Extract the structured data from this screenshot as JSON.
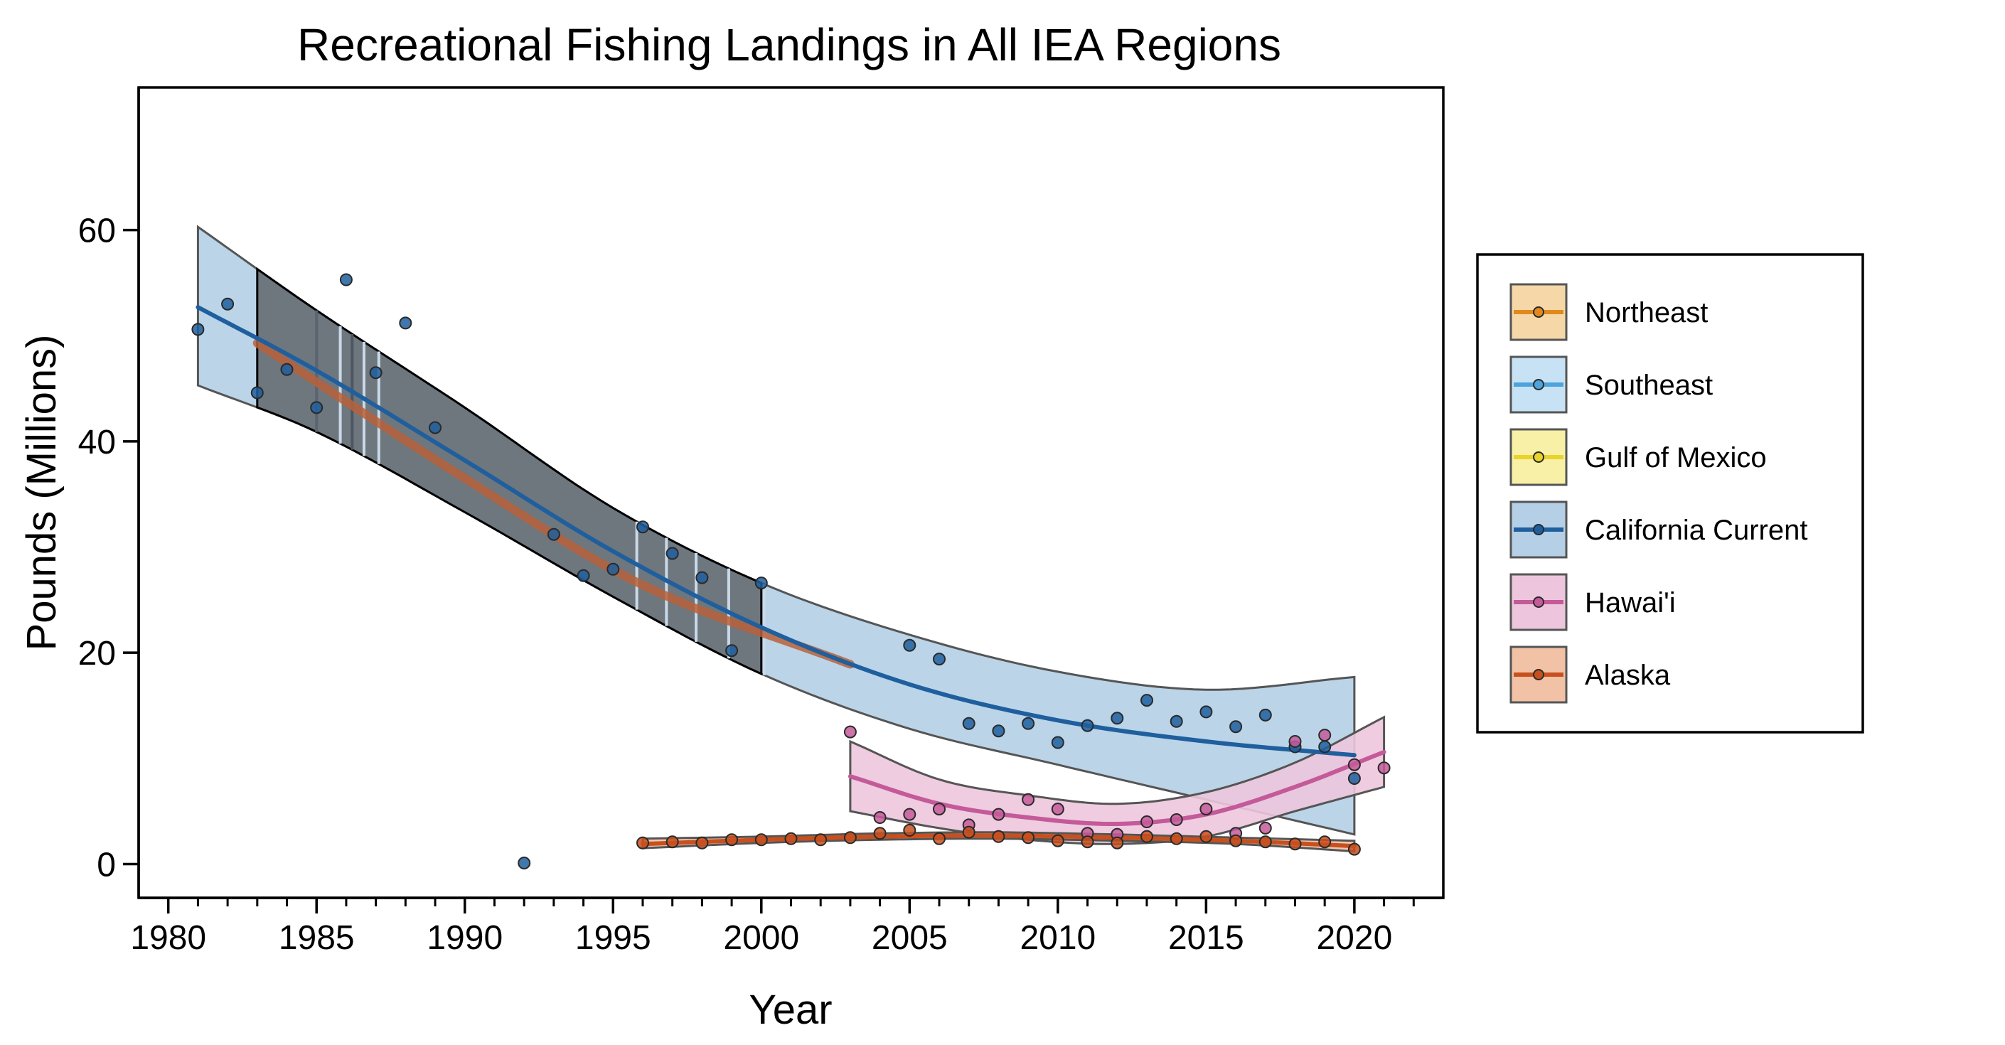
{
  "chart_data": {
    "type": "scatter",
    "title": "Recreational Fishing Landings in All IEA Regions",
    "xlabel": "Year",
    "ylabel": "Pounds (Millions)",
    "xlim": [
      1979,
      2023
    ],
    "ylim": [
      -3.2,
      73.5
    ],
    "x_ticks": [
      1980,
      1985,
      1990,
      1995,
      2000,
      2005,
      2010,
      2015,
      2020
    ],
    "x_minor_ticks": [
      1981,
      1982,
      1983,
      1984,
      1986,
      1987,
      1988,
      1989,
      1991,
      1992,
      1993,
      1994,
      1996,
      1997,
      1998,
      1999,
      2001,
      2002,
      2003,
      2004,
      2006,
      2007,
      2008,
      2009,
      2011,
      2012,
      2013,
      2014,
      2016,
      2017,
      2018,
      2019,
      2021,
      2022
    ],
    "y_ticks": [
      0,
      20,
      40,
      60
    ],
    "grid": false,
    "legend_position": "right",
    "series": [
      {
        "name": "Northeast",
        "color": "#E08A1E",
        "fill": "#F6D8A8",
        "points": [],
        "trend": {
          "x": [
            1983,
            1990,
            1996,
            2003
          ],
          "y": [
            49.3,
            36.5,
            26.4,
            18.9
          ]
        }
      },
      {
        "name": "Southeast",
        "color": "#4EA3DA",
        "fill": "#C7E2F5",
        "points": [],
        "trend": null
      },
      {
        "name": "Gulf of Mexico",
        "color": "#E8D42A",
        "fill": "#F7F0A6",
        "points": [],
        "trend": null
      },
      {
        "name": "California Current",
        "color": "#1F5F9E",
        "fill": "#B4CFE6",
        "points": [
          [
            1981,
            50.6
          ],
          [
            1982,
            53.0
          ],
          [
            1983,
            44.6
          ],
          [
            1984,
            46.8
          ],
          [
            1985,
            43.2
          ],
          [
            1986,
            55.3
          ],
          [
            1987,
            46.5
          ],
          [
            1988,
            51.2
          ],
          [
            1989,
            41.3
          ],
          [
            1992,
            0.1
          ],
          [
            1993,
            31.2
          ],
          [
            1994,
            27.3
          ],
          [
            1995,
            27.9
          ],
          [
            1996,
            31.9
          ],
          [
            1997,
            29.4
          ],
          [
            1998,
            27.1
          ],
          [
            1999,
            20.2
          ],
          [
            2000,
            26.6
          ],
          [
            2005,
            20.7
          ],
          [
            2006,
            19.4
          ],
          [
            2007,
            13.3
          ],
          [
            2008,
            12.6
          ],
          [
            2009,
            13.3
          ],
          [
            2010,
            11.5
          ],
          [
            2011,
            13.1
          ],
          [
            2012,
            13.8
          ],
          [
            2013,
            15.5
          ],
          [
            2014,
            13.5
          ],
          [
            2015,
            14.4
          ],
          [
            2016,
            13.0
          ],
          [
            2017,
            14.1
          ],
          [
            2018,
            11.1
          ],
          [
            2019,
            11.1
          ],
          [
            2020,
            8.1
          ]
        ],
        "trend": {
          "x": [
            1981,
            1985,
            1990,
            1995,
            2000,
            2005,
            2010,
            2015,
            2020
          ],
          "y": [
            52.7,
            46.7,
            38.2,
            29.6,
            22.4,
            17.0,
            13.6,
            11.6,
            10.3
          ],
          "lower": [
            45.3,
            40.9,
            33.3,
            25.3,
            18.0,
            12.8,
            9.4,
            6.1,
            2.8
          ],
          "upper": [
            60.3,
            52.4,
            43.2,
            33.7,
            26.6,
            21.7,
            18.2,
            16.5,
            17.7
          ]
        }
      },
      {
        "name": "Hawai'i",
        "color": "#C45A9A",
        "fill": "#EDC6DD",
        "points": [
          [
            2003,
            12.5
          ],
          [
            2004,
            4.4
          ],
          [
            2005,
            4.7
          ],
          [
            2006,
            5.2
          ],
          [
            2007,
            3.7
          ],
          [
            2008,
            4.7
          ],
          [
            2009,
            6.1
          ],
          [
            2010,
            5.2
          ],
          [
            2011,
            2.9
          ],
          [
            2012,
            2.8
          ],
          [
            2013,
            4.0
          ],
          [
            2014,
            4.2
          ],
          [
            2015,
            5.2
          ],
          [
            2016,
            2.9
          ],
          [
            2017,
            3.4
          ],
          [
            2018,
            11.6
          ],
          [
            2019,
            12.2
          ],
          [
            2020,
            9.4
          ],
          [
            2021,
            9.1
          ]
        ],
        "trend": {
          "x": [
            2003,
            2006,
            2009,
            2012,
            2015,
            2018,
            2021
          ],
          "y": [
            8.3,
            5.7,
            4.4,
            3.8,
            4.7,
            7.3,
            10.6
          ],
          "lower": [
            5.0,
            3.4,
            2.3,
            1.9,
            2.6,
            5.0,
            7.3
          ],
          "upper": [
            11.6,
            8.0,
            6.5,
            5.7,
            6.8,
            9.6,
            13.9
          ]
        }
      },
      {
        "name": "Alaska",
        "color": "#C8501E",
        "fill": "#F1C2A6",
        "points": [
          [
            1996,
            2.0
          ],
          [
            1997,
            2.1
          ],
          [
            1998,
            2.0
          ],
          [
            1999,
            2.3
          ],
          [
            2000,
            2.3
          ],
          [
            2001,
            2.4
          ],
          [
            2002,
            2.3
          ],
          [
            2003,
            2.5
          ],
          [
            2004,
            2.9
          ],
          [
            2005,
            3.2
          ],
          [
            2006,
            2.4
          ],
          [
            2007,
            3.0
          ],
          [
            2008,
            2.6
          ],
          [
            2009,
            2.5
          ],
          [
            2010,
            2.2
          ],
          [
            2011,
            2.1
          ],
          [
            2012,
            2.0
          ],
          [
            2013,
            2.6
          ],
          [
            2014,
            2.4
          ],
          [
            2015,
            2.6
          ],
          [
            2016,
            2.2
          ],
          [
            2017,
            2.1
          ],
          [
            2018,
            1.9
          ],
          [
            2019,
            2.1
          ],
          [
            2020,
            1.4
          ]
        ],
        "trend": {
          "x": [
            1996,
            2000,
            2004,
            2008,
            2012,
            2016,
            2020
          ],
          "y": [
            1.9,
            2.3,
            2.6,
            2.7,
            2.5,
            2.2,
            1.7
          ],
          "lower": [
            1.5,
            2.0,
            2.3,
            2.4,
            2.2,
            1.9,
            1.2
          ],
          "upper": [
            2.4,
            2.6,
            2.9,
            3.0,
            2.8,
            2.5,
            2.2
          ]
        }
      }
    ]
  }
}
